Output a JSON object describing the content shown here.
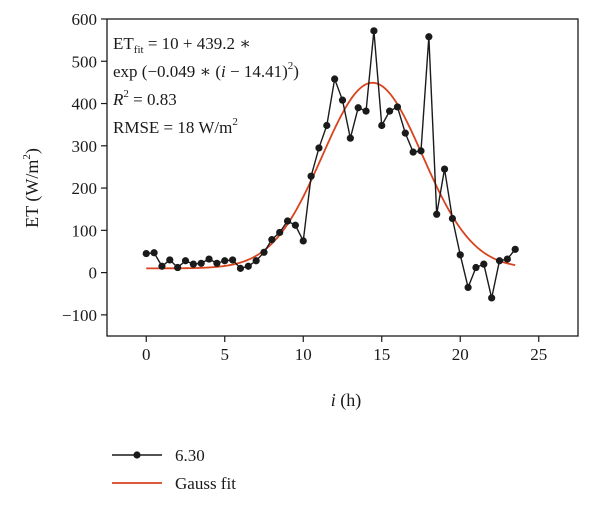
{
  "chart_data": {
    "type": "line",
    "title": "",
    "xlabel": {
      "var": "i",
      "unit": " (h)"
    },
    "ylabel": {
      "main": "ET (W/m",
      "sup": "2",
      "end": ")"
    },
    "xlim": [
      -2.5,
      27.5
    ],
    "ylim": [
      -150,
      600
    ],
    "xticks": [
      0,
      5,
      10,
      15,
      20,
      25
    ],
    "yticks": [
      -100,
      0,
      100,
      200,
      300,
      400,
      500,
      600
    ],
    "grid": false,
    "legend_position": "bottom-left",
    "annotations": {
      "formula_line1": {
        "base": "ET",
        "sub": "fit",
        "rest": " = 10 + 439.2 ∗"
      },
      "formula_line2": {
        "pre": "exp (−0.049 ∗ (",
        "var": "i",
        "mid": " − 14.41)",
        "sup": "2",
        "end": ")"
      },
      "r2": {
        "base": "R",
        "sup": "2",
        "rest": " = 0.83"
      },
      "rmse": {
        "base": "RMSE = 18 W/m",
        "sup": "2"
      }
    },
    "series": [
      {
        "name": "6.30",
        "color": "#1a1a1a",
        "marker": "circle",
        "points": [
          [
            0.0,
            45
          ],
          [
            0.5,
            47
          ],
          [
            1.0,
            15
          ],
          [
            1.5,
            30
          ],
          [
            2.0,
            12
          ],
          [
            2.5,
            28
          ],
          [
            3.0,
            20
          ],
          [
            3.5,
            22
          ],
          [
            4.0,
            32
          ],
          [
            4.5,
            22
          ],
          [
            5.0,
            28
          ],
          [
            5.5,
            30
          ],
          [
            6.0,
            10
          ],
          [
            6.5,
            15
          ],
          [
            7.0,
            28
          ],
          [
            7.5,
            48
          ],
          [
            8.0,
            78
          ],
          [
            8.5,
            95
          ],
          [
            9.0,
            122
          ],
          [
            9.5,
            112
          ],
          [
            10.0,
            75
          ],
          [
            10.5,
            228
          ],
          [
            11.0,
            295
          ],
          [
            11.5,
            348
          ],
          [
            12.0,
            458
          ],
          [
            12.5,
            408
          ],
          [
            13.0,
            318
          ],
          [
            13.5,
            390
          ],
          [
            14.0,
            382
          ],
          [
            14.5,
            572
          ],
          [
            15.0,
            348
          ],
          [
            15.5,
            382
          ],
          [
            16.0,
            392
          ],
          [
            16.5,
            330
          ],
          [
            17.0,
            285
          ],
          [
            17.5,
            288
          ],
          [
            18.0,
            558
          ],
          [
            18.5,
            138
          ],
          [
            19.0,
            245
          ],
          [
            19.5,
            128
          ],
          [
            20.0,
            42
          ],
          [
            20.5,
            -35
          ],
          [
            21.0,
            12
          ],
          [
            21.5,
            20
          ],
          [
            22.0,
            -60
          ],
          [
            22.5,
            28
          ],
          [
            23.0,
            32
          ],
          [
            23.5,
            55
          ]
        ]
      },
      {
        "name": "Gauss fit",
        "color": "#d9431e",
        "marker": "none",
        "formula": {
          "a": 10,
          "b": 439.2,
          "c": 0.049,
          "mu": 14.41
        },
        "x_range": [
          0,
          23.5
        ]
      }
    ]
  }
}
